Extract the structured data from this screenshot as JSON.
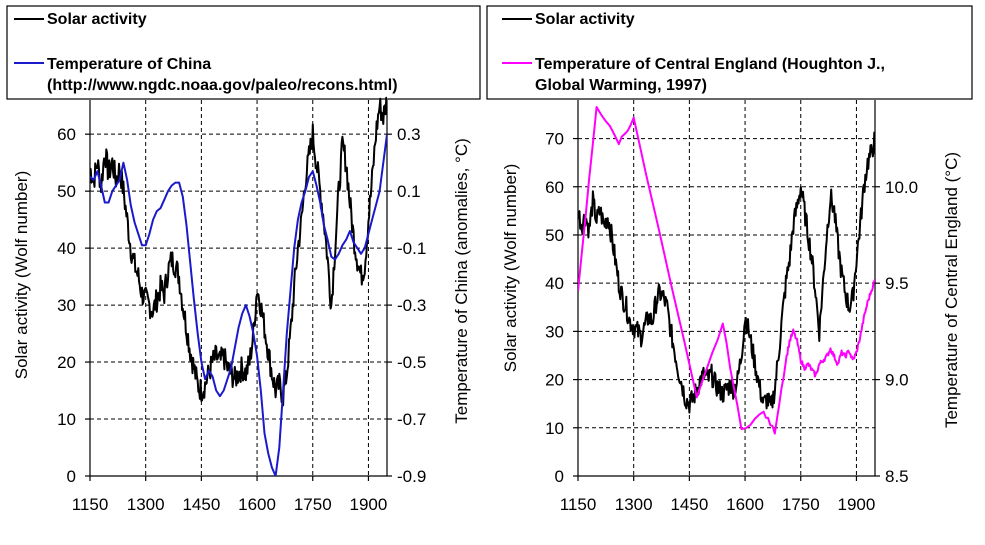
{
  "chart_data": [
    {
      "type": "line",
      "legend": {
        "entries": [
          {
            "label": "Solar activity",
            "color": "#000000"
          },
          {
            "label": "Temperature of China",
            "label2": "(http://www.ngdc.noaa.gov/paleo/recons.html)",
            "color": "#1a1acc"
          }
        ]
      },
      "xlabel": "",
      "ylabel_left": "Solar activity  (Wolf number)",
      "ylabel_right": "Temperature of China  (anomalies, °C)",
      "xlim": [
        1150,
        1950
      ],
      "ylim_left": [
        0,
        66
      ],
      "ylim_right": [
        -0.9,
        0.42
      ],
      "x_ticks": [
        "1150",
        "1300",
        "1450",
        "1600",
        "1750",
        "1900"
      ],
      "x_tick_values": [
        1150,
        1300,
        1450,
        1600,
        1750,
        1900
      ],
      "y_left_ticks": [
        "0",
        "10",
        "20",
        "30",
        "40",
        "50",
        "60"
      ],
      "y_left_tick_values": [
        0,
        10,
        20,
        30,
        40,
        50,
        60
      ],
      "y_right_ticks": [
        "-0.9",
        "-0.7",
        "-0.5",
        "-0.3",
        "-0.1",
        "0.1",
        "0.3"
      ],
      "y_right_tick_values": [
        -0.9,
        -0.7,
        -0.5,
        -0.3,
        -0.1,
        0.1,
        0.3
      ],
      "grid": true,
      "series": [
        {
          "name": "Solar activity",
          "axis": "left",
          "color": "#000000",
          "x": [
            1150,
            1160,
            1170,
            1180,
            1190,
            1200,
            1210,
            1220,
            1230,
            1240,
            1250,
            1260,
            1270,
            1280,
            1290,
            1300,
            1310,
            1320,
            1330,
            1340,
            1350,
            1360,
            1370,
            1380,
            1390,
            1400,
            1410,
            1420,
            1430,
            1440,
            1450,
            1460,
            1470,
            1480,
            1490,
            1500,
            1510,
            1520,
            1530,
            1540,
            1550,
            1560,
            1570,
            1580,
            1590,
            1600,
            1610,
            1620,
            1630,
            1640,
            1650,
            1660,
            1670,
            1680,
            1690,
            1700,
            1710,
            1720,
            1730,
            1740,
            1750,
            1760,
            1770,
            1780,
            1790,
            1800,
            1810,
            1820,
            1830,
            1840,
            1850,
            1860,
            1870,
            1880,
            1890,
            1900,
            1910,
            1920,
            1930,
            1940,
            1950
          ],
          "y": [
            54,
            52,
            55,
            51,
            57,
            53,
            55,
            52,
            54,
            50,
            45,
            40,
            37,
            35,
            32,
            31,
            30,
            29,
            31,
            33,
            32,
            36,
            38,
            37,
            35,
            30,
            26,
            22,
            19,
            16,
            15,
            16,
            18,
            20,
            21,
            20,
            21,
            19,
            18,
            17,
            18,
            19,
            18,
            20,
            25,
            33,
            30,
            26,
            22,
            18,
            15,
            16,
            14,
            18,
            25,
            33,
            40,
            45,
            52,
            56,
            60,
            55,
            50,
            45,
            38,
            30,
            40,
            50,
            58,
            55,
            48,
            42,
            38,
            35,
            37,
            45,
            52,
            60,
            65,
            63,
            66
          ],
          "jitter": 2.2
        },
        {
          "name": "Temperature of China",
          "axis": "right",
          "color": "#1a1acc",
          "x": [
            1150,
            1160,
            1170,
            1180,
            1190,
            1200,
            1210,
            1220,
            1230,
            1240,
            1250,
            1260,
            1270,
            1280,
            1290,
            1300,
            1310,
            1320,
            1330,
            1340,
            1350,
            1360,
            1370,
            1380,
            1390,
            1400,
            1410,
            1420,
            1430,
            1440,
            1450,
            1460,
            1470,
            1480,
            1490,
            1500,
            1510,
            1520,
            1530,
            1540,
            1550,
            1560,
            1570,
            1580,
            1590,
            1600,
            1610,
            1620,
            1630,
            1640,
            1650,
            1660,
            1670,
            1680,
            1690,
            1700,
            1710,
            1720,
            1730,
            1740,
            1750,
            1760,
            1770,
            1780,
            1790,
            1800,
            1810,
            1820,
            1830,
            1840,
            1850,
            1860,
            1870,
            1880,
            1890,
            1900,
            1910,
            1920,
            1930,
            1940,
            1950
          ],
          "y": [
            0.15,
            0.14,
            0.17,
            0.12,
            0.06,
            0.06,
            0.1,
            0.12,
            0.14,
            0.2,
            0.14,
            0.05,
            -0.01,
            -0.05,
            -0.09,
            -0.09,
            -0.05,
            0,
            0.03,
            0.04,
            0.07,
            0.1,
            0.12,
            0.13,
            0.13,
            0.08,
            -0.02,
            -0.15,
            -0.28,
            -0.4,
            -0.5,
            -0.56,
            -0.53,
            -0.55,
            -0.6,
            -0.62,
            -0.6,
            -0.56,
            -0.52,
            -0.45,
            -0.38,
            -0.33,
            -0.3,
            -0.34,
            -0.4,
            -0.48,
            -0.6,
            -0.75,
            -0.82,
            -0.87,
            -0.9,
            -0.8,
            -0.6,
            -0.4,
            -0.25,
            -0.1,
            0,
            0.06,
            0.1,
            0.15,
            0.17,
            0.12,
            0.06,
            -0.02,
            -0.07,
            -0.13,
            -0.14,
            -0.12,
            -0.09,
            -0.07,
            -0.04,
            -0.08,
            -0.1,
            -0.12,
            -0.1,
            -0.05,
            0,
            0.05,
            0.1,
            0.2,
            0.3
          ],
          "jitter": 0
        }
      ]
    },
    {
      "type": "line",
      "legend": {
        "entries": [
          {
            "label": "Solar activity",
            "color": "#000000"
          },
          {
            "label": "Temperature of Central England (Houghton J.,",
            "label2": "Global Warming, 1997)",
            "color": "#ff00ff"
          }
        ]
      },
      "xlabel": "",
      "ylabel_left": "Solar activity  (Wolf number)",
      "ylabel_right": "Temperature of Central England (°C)",
      "xlim": [
        1150,
        1950
      ],
      "ylim_left": [
        0,
        78
      ],
      "ylim_right": [
        8.5,
        10.45
      ],
      "x_ticks": [
        "1150",
        "1300",
        "1450",
        "1600",
        "1750",
        "1900"
      ],
      "x_tick_values": [
        1150,
        1300,
        1450,
        1600,
        1750,
        1900
      ],
      "y_left_ticks": [
        "0",
        "10",
        "20",
        "30",
        "40",
        "50",
        "60",
        "70"
      ],
      "y_left_tick_values": [
        0,
        10,
        20,
        30,
        40,
        50,
        60,
        70
      ],
      "y_right_ticks": [
        "8.5",
        "9.0",
        "9.5",
        "10.0"
      ],
      "y_right_tick_values": [
        8.5,
        9.0,
        9.5,
        10.0
      ],
      "grid": true,
      "series": [
        {
          "name": "Solar activity",
          "axis": "left",
          "color": "#000000",
          "x": [
            1150,
            1160,
            1170,
            1180,
            1190,
            1200,
            1210,
            1220,
            1230,
            1240,
            1250,
            1260,
            1270,
            1280,
            1290,
            1300,
            1310,
            1320,
            1330,
            1340,
            1350,
            1360,
            1370,
            1380,
            1390,
            1400,
            1410,
            1420,
            1430,
            1440,
            1450,
            1460,
            1470,
            1480,
            1490,
            1500,
            1510,
            1520,
            1530,
            1540,
            1550,
            1560,
            1570,
            1580,
            1590,
            1600,
            1610,
            1620,
            1630,
            1640,
            1650,
            1660,
            1670,
            1680,
            1690,
            1700,
            1710,
            1720,
            1730,
            1740,
            1750,
            1760,
            1770,
            1780,
            1790,
            1800,
            1810,
            1820,
            1830,
            1840,
            1850,
            1860,
            1870,
            1880,
            1890,
            1900,
            1910,
            1920,
            1930,
            1940,
            1950
          ],
          "y": [
            55,
            52,
            54,
            51,
            57,
            53,
            55,
            52,
            54,
            50,
            45,
            40,
            37,
            35,
            32,
            31,
            30,
            29,
            31,
            33,
            32,
            36,
            38,
            37,
            35,
            30,
            26,
            22,
            19,
            16,
            15,
            16,
            18,
            20,
            21,
            20,
            21,
            19,
            18,
            17,
            18,
            19,
            18,
            20,
            25,
            33,
            30,
            26,
            22,
            18,
            15,
            16,
            14,
            18,
            25,
            33,
            40,
            45,
            52,
            56,
            60,
            55,
            50,
            45,
            38,
            30,
            40,
            50,
            58,
            55,
            48,
            42,
            38,
            35,
            37,
            45,
            52,
            60,
            65,
            67,
            70
          ],
          "jitter": 2.2
        },
        {
          "name": "Temperature of Central England (Houghton J., Global Warming, 1997)",
          "axis": "right",
          "color": "#ff00ff",
          "x": [
            1150,
            1200,
            1260,
            1300,
            1470,
            1540,
            1590,
            1650,
            1680,
            1710,
            1720,
            1730,
            1740,
            1750,
            1760,
            1770,
            1780,
            1790,
            1800,
            1810,
            1820,
            1830,
            1840,
            1850,
            1860,
            1870,
            1880,
            1890,
            1900,
            1910,
            1920,
            1930,
            1940,
            1950
          ],
          "y": [
            9.45,
            10.42,
            10.23,
            10.35,
            8.9,
            9.29,
            8.74,
            8.83,
            8.73,
            9.1,
            9.2,
            9.25,
            9.2,
            9.1,
            9.06,
            9.08,
            9.05,
            9.02,
            9.08,
            9.1,
            9.12,
            9.16,
            9.12,
            9.08,
            9.14,
            9.12,
            9.15,
            9.1,
            9.14,
            9.22,
            9.32,
            9.4,
            9.46,
            9.52
          ],
          "jitter": 0.012
        }
      ]
    }
  ]
}
